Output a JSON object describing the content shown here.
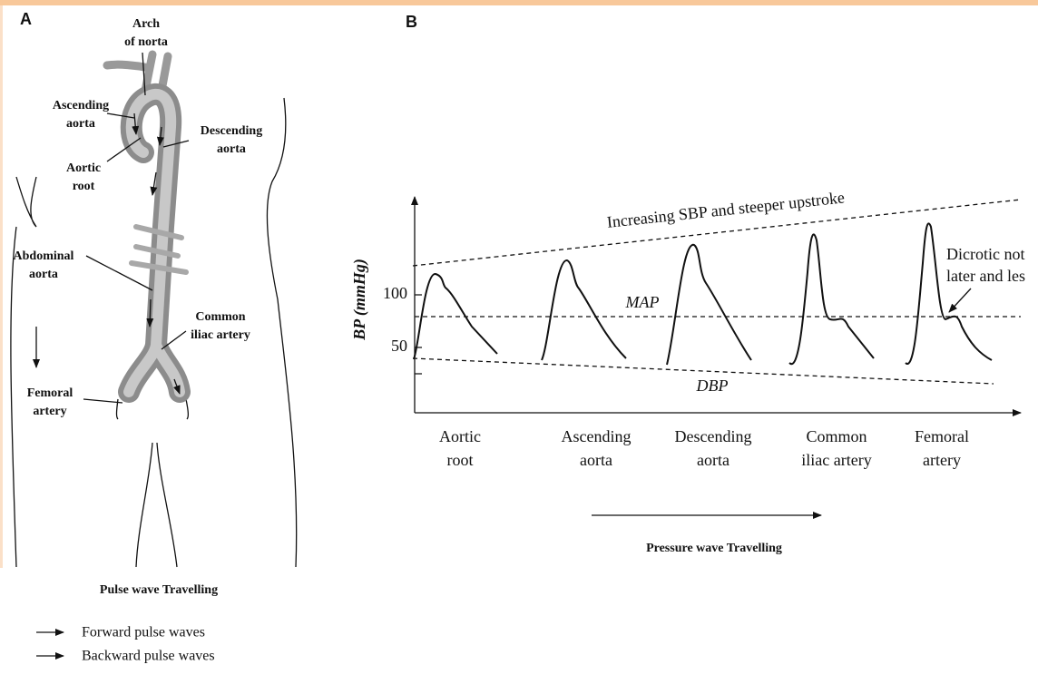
{
  "panel_a": {
    "letter": "A",
    "labels": [
      {
        "lines": [
          "Arch",
          "of norta"
        ]
      },
      {
        "lines": [
          "Ascending",
          "aorta"
        ]
      },
      {
        "lines": [
          "Descending",
          "aorta"
        ]
      },
      {
        "lines": [
          "Aortic",
          "root"
        ]
      },
      {
        "lines": [
          "Abdominal",
          "aorta"
        ]
      },
      {
        "lines": [
          "Common",
          "iliac artery"
        ]
      },
      {
        "lines": [
          "Femoral",
          "artery"
        ]
      }
    ],
    "caption": "Pulse wave Travelling",
    "legend": [
      "Forward pulse waves",
      "Backward pulse waves"
    ]
  },
  "panel_b": {
    "letter": "B",
    "trend_label": "Increasing SBP and steeper upstroke",
    "note": [
      "Dicrotic not",
      "later and les"
    ],
    "y_label": "BP (mmHg)",
    "y_ticks": [
      "100",
      "50"
    ],
    "map_label": "MAP",
    "dbp_label": "DBP",
    "sites": [
      {
        "lines": [
          "Aortic",
          "root"
        ]
      },
      {
        "lines": [
          "Ascending",
          "aorta"
        ]
      },
      {
        "lines": [
          "Descending",
          "aorta"
        ]
      },
      {
        "lines": [
          "Common",
          "iliac artery"
        ]
      },
      {
        "lines": [
          "Femoral",
          "artery"
        ]
      }
    ],
    "caption": "Pressure wave Travelling"
  }
}
